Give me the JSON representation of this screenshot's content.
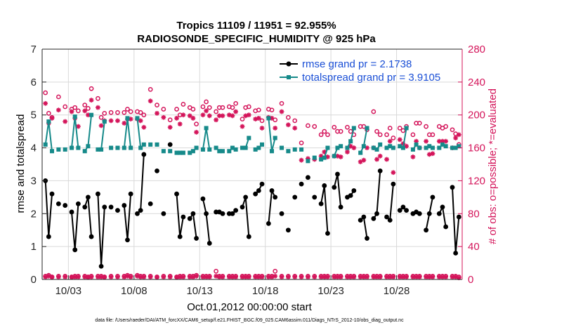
{
  "chart_data": {
    "type": "line",
    "title": "Tropics 11109 / 11951 = 92.955%",
    "subtitle": "RADIOSONDE_SPECIFIC_HUMIDITY @ 925 hPa",
    "xlabel": "Oct.01,2012 00:00:00 start",
    "ylabel_left": "rmse and totalspread",
    "ylabel_right": "# of obs: o=possible; *=evaluated",
    "footnote": "data file: /Users/raeder/DAI/ATM_forcXX/CAM6_setup/f.e21.FHIST_BGC.f09_025.CAM6assim.011/Diags_NTrS_2012-10/obs_diag_output.nc",
    "xlim": [
      1,
      33
    ],
    "ylim_left": [
      0,
      7
    ],
    "ylim_right": [
      0,
      280
    ],
    "x_ticks": [
      3,
      8,
      13,
      18,
      23,
      28
    ],
    "x_tick_labels": [
      "10/03",
      "10/08",
      "10/13",
      "10/18",
      "10/23",
      "10/28"
    ],
    "y_left_ticks": [
      "0",
      "1",
      "2",
      "3",
      "4",
      "5",
      "6",
      "7"
    ],
    "y_right_ticks": [
      "0",
      "40",
      "80",
      "120",
      "160",
      "200",
      "240",
      "280"
    ],
    "colors": {
      "rmse": "#000000",
      "spread": "#168a8a",
      "obs": "#d4145a",
      "legend_text": "#1a4fd6"
    },
    "series": [
      {
        "name": "rmse grand pr = 2.1738",
        "axis": "left",
        "x": [
          1.25,
          1.5,
          1.75,
          2.25,
          2.75,
          3.25,
          3.5,
          3.75,
          4.25,
          4.5,
          4.75,
          5.25,
          5.5,
          5.75,
          6.25,
          6.75,
          7.25,
          7.5,
          7.75,
          8.25,
          8.5,
          8.75,
          9.25,
          9.75,
          10.25,
          10.75,
          11.25,
          11.5,
          11.75,
          12.25,
          12.5,
          12.75,
          13.25,
          13.5,
          13.75,
          14.25,
          14.5,
          14.75,
          15.25,
          15.5,
          15.75,
          16.25,
          16.5,
          16.75,
          17.25,
          17.5,
          17.75,
          18.25,
          18.5,
          18.75,
          19.25,
          19.75,
          20.25,
          20.75,
          21.25,
          21.75,
          22.25,
          22.5,
          22.75,
          23.25,
          23.5,
          23.75,
          24.25,
          24.5,
          24.75,
          25.25,
          25.5,
          25.75,
          26.25,
          26.5,
          26.75,
          27.25,
          27.5,
          27.75,
          28.25,
          28.5,
          28.75,
          29.25,
          29.5,
          29.75,
          30.25,
          30.5,
          30.75,
          31.25,
          31.5,
          31.75,
          32.25,
          32.5,
          32.75
        ],
        "y": [
          3.0,
          1.3,
          2.6,
          2.3,
          2.25,
          2.05,
          0.9,
          2.3,
          2.2,
          2.5,
          1.3,
          2.6,
          0.4,
          2.2,
          2.2,
          2.1,
          2.25,
          1.2,
          2.6,
          2.0,
          2.1,
          3.8,
          2.3,
          3.3,
          2.0,
          4.1,
          2.6,
          1.3,
          1.9,
          1.85,
          2.0,
          1.25,
          2.45,
          2.0,
          1.1,
          2.05,
          2.05,
          2.0,
          2.0,
          2.0,
          2.1,
          2.2,
          2.5,
          1.3,
          2.6,
          2.7,
          2.9,
          1.7,
          2.7,
          2.5,
          2.0,
          1.5,
          2.5,
          2.9,
          3.1,
          2.5,
          2.3,
          2.85,
          1.4,
          2.8,
          3.2,
          2.2,
          2.5,
          2.55,
          2.7,
          1.8,
          1.9,
          1.25,
          1.85,
          2.0,
          3.3,
          1.9,
          1.8,
          2.9,
          2.1,
          2.2,
          2.1,
          2.0,
          2.05,
          2.0,
          1.5,
          2.0,
          2.5,
          2.0,
          2.2,
          1.6,
          2.8,
          0.8,
          1.9
        ]
      },
      {
        "name": "totalspread grand pr = 3.9105",
        "axis": "left",
        "x": [
          1.25,
          1.5,
          1.75,
          2.25,
          2.75,
          3.25,
          3.5,
          3.75,
          4.25,
          4.5,
          4.75,
          5.25,
          5.5,
          5.75,
          6.25,
          6.75,
          7.25,
          7.5,
          7.75,
          8.25,
          8.5,
          8.75,
          9.25,
          9.75,
          10.25,
          10.75,
          11.25,
          11.5,
          11.75,
          12.25,
          12.5,
          12.75,
          13.25,
          13.5,
          13.75,
          14.25,
          14.5,
          14.75,
          15.25,
          15.5,
          15.75,
          16.25,
          16.5,
          16.75,
          17.25,
          17.5,
          17.75,
          18.25,
          18.5,
          18.75,
          19.25,
          19.75,
          20.25,
          20.75,
          21.25,
          21.75,
          22.25,
          22.5,
          22.75,
          23.25,
          23.5,
          23.75,
          24.25,
          24.5,
          24.75,
          25.25,
          25.5,
          25.75,
          26.25,
          26.5,
          26.75,
          27.25,
          27.5,
          27.75,
          28.25,
          28.5,
          28.75,
          29.25,
          29.5,
          29.75,
          30.25,
          30.5,
          30.75,
          31.25,
          31.5,
          31.75,
          32.25,
          32.5,
          32.75
        ],
        "y": [
          4.1,
          4.8,
          3.9,
          3.95,
          3.95,
          4.0,
          4.95,
          4.0,
          3.9,
          4.05,
          5.0,
          3.95,
          3.95,
          4.8,
          4.0,
          4.0,
          4.0,
          4.9,
          4.0,
          4.9,
          4.0,
          4.1,
          4.1,
          4.1,
          3.9,
          3.9,
          3.85,
          3.85,
          3.85,
          3.85,
          3.9,
          4.0,
          3.95,
          4.6,
          3.95,
          4.0,
          3.9,
          3.9,
          3.9,
          4.0,
          3.95,
          4.0,
          4.0,
          4.3,
          3.95,
          4.0,
          4.1,
          4.9,
          3.9,
          4.3,
          4.0,
          3.9,
          3.95,
          3.95,
          3.6,
          3.7,
          3.65,
          3.7,
          4.0,
          3.75,
          4.0,
          4.05,
          4.0,
          4.2,
          4.6,
          3.85,
          4.05,
          4.6,
          4.0,
          3.95,
          4.1,
          4.0,
          4.05,
          4.0,
          4.05,
          4.0,
          4.6,
          3.95,
          4.1,
          4.0,
          4.0,
          4.05,
          4.0,
          4.0,
          4.1,
          4.05,
          4.0,
          4.0,
          4.05
        ]
      },
      {
        "name": "possible obs",
        "axis": "right",
        "x": [
          1.25,
          1.5,
          1.75,
          2.25,
          2.75,
          3.25,
          3.5,
          3.75,
          4.25,
          4.5,
          4.75,
          5.25,
          5.5,
          5.75,
          6.25,
          6.75,
          7.25,
          7.5,
          7.75,
          8.25,
          8.5,
          8.75,
          9.25,
          9.75,
          10.25,
          10.75,
          11.25,
          11.5,
          11.75,
          12.25,
          12.5,
          12.75,
          13.25,
          13.5,
          13.75,
          14.25,
          14.5,
          14.75,
          15.25,
          15.5,
          15.75,
          16.25,
          16.5,
          16.75,
          17.25,
          17.5,
          17.75,
          18.25,
          18.5,
          18.75,
          19.25,
          19.75,
          20.25,
          20.75,
          21.25,
          21.75,
          22.25,
          22.5,
          22.75,
          23.25,
          23.5,
          23.75,
          24.25,
          24.5,
          24.75,
          25.25,
          25.5,
          25.75,
          26.25,
          26.5,
          26.75,
          27.25,
          27.5,
          27.75,
          28.25,
          28.5,
          28.75,
          29.25,
          29.5,
          29.75,
          30.25,
          30.5,
          30.75,
          31.25,
          31.5,
          31.75,
          32.25,
          32.5,
          32.75
        ],
        "y": [
          227,
          202,
          197,
          222,
          210,
          207,
          209,
          205,
          212,
          208,
          232,
          220,
          197,
          202,
          203,
          203,
          203,
          207,
          204,
          204,
          203,
          200,
          231,
          212,
          207,
          194,
          207,
          200,
          213,
          209,
          207,
          189,
          210,
          216,
          209,
          204,
          209,
          209,
          210,
          209,
          214,
          195,
          209,
          210,
          205,
          206,
          193,
          207,
          206,
          194,
          214,
          197,
          193,
          166,
          187,
          186,
          176,
          180,
          176,
          185,
          180,
          180,
          185,
          180,
          176,
          186,
          186,
          182,
          204,
          180,
          176,
          176,
          184,
          172,
          184,
          181,
          186,
          176,
          190,
          190,
          186,
          176,
          176,
          186,
          184,
          186,
          182,
          177,
          164
        ]
      },
      {
        "name": "evaluated obs",
        "axis": "right",
        "x": [
          1.25,
          1.5,
          1.75,
          2.25,
          2.75,
          3.25,
          3.5,
          3.75,
          4.25,
          4.5,
          4.75,
          5.25,
          5.5,
          5.75,
          6.25,
          6.75,
          7.25,
          7.5,
          7.75,
          8.25,
          8.5,
          8.75,
          9.25,
          9.75,
          10.25,
          10.75,
          11.25,
          11.5,
          11.75,
          12.25,
          12.5,
          12.75,
          13.25,
          13.5,
          13.75,
          14.25,
          14.5,
          14.75,
          15.25,
          15.5,
          15.75,
          16.25,
          16.5,
          16.75,
          17.25,
          17.5,
          17.75,
          18.25,
          18.5,
          18.75,
          19.25,
          19.75,
          20.25,
          20.75,
          21.25,
          21.75,
          22.25,
          22.5,
          22.75,
          23.25,
          23.5,
          23.75,
          24.25,
          24.5,
          24.75,
          25.25,
          25.5,
          25.75,
          26.25,
          26.5,
          26.75,
          27.25,
          27.5,
          27.75,
          28.25,
          28.5,
          28.75,
          29.25,
          29.5,
          29.75,
          30.25,
          30.5,
          30.75,
          31.25,
          31.5,
          31.75,
          32.25,
          32.5,
          32.75
        ],
        "y": [
          214,
          190,
          196,
          206,
          192,
          204,
          196,
          186,
          205,
          200,
          218,
          209,
          187,
          193,
          193,
          193,
          190,
          195,
          195,
          195,
          193,
          185,
          217,
          202,
          197,
          185,
          196,
          189,
          200,
          199,
          196,
          179,
          200,
          205,
          199,
          194,
          199,
          199,
          200,
          199,
          204,
          186,
          199,
          200,
          195,
          196,
          184,
          197,
          196,
          184,
          204,
          188,
          184,
          145,
          147,
          146,
          150,
          155,
          149,
          150,
          150,
          149,
          155,
          162,
          160,
          143,
          145,
          160,
          160,
          146,
          150,
          146,
          168,
          130,
          170,
          165,
          162,
          149,
          168,
          160,
          168,
          152,
          153,
          168,
          168,
          168,
          160,
          172,
          176
        ]
      },
      {
        "name": "possible obs (bottom)",
        "axis": "right",
        "x": [
          1.25,
          1.5,
          1.75,
          2.25,
          2.75,
          3.25,
          3.5,
          3.75,
          4.25,
          4.5,
          4.75,
          5.25,
          5.5,
          5.75,
          6.25,
          6.75,
          7.25,
          7.5,
          7.75,
          8.25,
          8.5,
          8.75,
          9.25,
          9.75,
          10.25,
          10.75,
          11.25,
          11.5,
          11.75,
          12.25,
          12.5,
          12.75,
          13.25,
          13.5,
          13.75,
          14.25,
          14.5,
          14.75,
          15.25,
          15.5,
          15.75,
          16.25,
          16.5,
          16.75,
          17.25,
          17.5,
          17.75,
          18.25,
          18.5,
          18.75,
          19.25,
          19.75,
          20.25,
          20.75,
          21.25,
          21.75,
          22.25,
          22.5,
          22.75,
          23.25,
          23.5,
          23.75,
          24.25,
          24.5,
          24.75,
          25.25,
          25.5,
          25.75,
          26.25,
          26.5,
          26.75,
          27.25,
          27.5,
          27.75,
          28.25,
          28.5,
          28.75,
          29.25,
          29.5,
          29.75,
          30.25,
          30.5,
          30.75,
          31.25,
          31.5,
          31.75,
          32.25,
          32.5,
          32.75
        ],
        "y": [
          4,
          5,
          3,
          4,
          4,
          3,
          4,
          4,
          4,
          3,
          4,
          4,
          4,
          3,
          4,
          4,
          4,
          5,
          4,
          5,
          4,
          4,
          4,
          3,
          4,
          4,
          3,
          4,
          4,
          4,
          4,
          5,
          4,
          4,
          4,
          10,
          4,
          4,
          4,
          4,
          4,
          4,
          4,
          4,
          4,
          4,
          4,
          4,
          4,
          10,
          4,
          4,
          4,
          4,
          4,
          4,
          4,
          4,
          4,
          4,
          4,
          4,
          4,
          4,
          4,
          4,
          4,
          4,
          4,
          4,
          4,
          4,
          4,
          4,
          4,
          4,
          4,
          4,
          4,
          4,
          4,
          4,
          4,
          4,
          4,
          4,
          4,
          4,
          3
        ]
      },
      {
        "name": "evaluated obs (bottom)",
        "axis": "right",
        "x": [
          1.25,
          1.5,
          1.75,
          2.25,
          2.75,
          3.25,
          3.5,
          3.75,
          4.25,
          4.5,
          4.75,
          5.25,
          5.5,
          5.75,
          6.25,
          6.75,
          7.25,
          7.5,
          7.75,
          8.25,
          8.5,
          8.75,
          9.25,
          9.75,
          10.25,
          10.75,
          11.25,
          11.5,
          11.75,
          12.25,
          12.5,
          12.75,
          13.25,
          13.5,
          13.75,
          14.25,
          14.5,
          14.75,
          15.25,
          15.5,
          15.75,
          16.25,
          16.5,
          16.75,
          17.25,
          17.5,
          17.75,
          18.25,
          18.5,
          18.75,
          19.25,
          19.75,
          20.25,
          20.75,
          21.25,
          21.75,
          22.25,
          22.5,
          22.75,
          23.25,
          23.5,
          23.75,
          24.25,
          24.5,
          24.75,
          25.25,
          25.5,
          25.75,
          26.25,
          26.5,
          26.75,
          27.25,
          27.5,
          27.75,
          28.25,
          28.5,
          28.75,
          29.25,
          29.5,
          29.75,
          30.25,
          30.5,
          30.75,
          31.25,
          31.5,
          31.75,
          32.25,
          32.5,
          32.75
        ],
        "y": [
          3,
          4,
          3,
          3,
          3,
          3,
          3,
          3,
          3,
          3,
          3,
          3,
          3,
          3,
          3,
          3,
          3,
          4,
          3,
          4,
          3,
          3,
          3,
          3,
          3,
          3,
          3,
          3,
          3,
          3,
          3,
          4,
          3,
          3,
          3,
          4,
          3,
          3,
          3,
          3,
          3,
          3,
          3,
          3,
          3,
          3,
          3,
          3,
          3,
          4,
          3,
          3,
          3,
          3,
          3,
          3,
          3,
          3,
          3,
          3,
          3,
          3,
          3,
          3,
          3,
          3,
          3,
          3,
          3,
          3,
          3,
          3,
          3,
          3,
          3,
          3,
          3,
          3,
          3,
          3,
          3,
          3,
          3,
          3,
          3,
          3,
          3,
          3,
          2
        ]
      }
    ]
  }
}
